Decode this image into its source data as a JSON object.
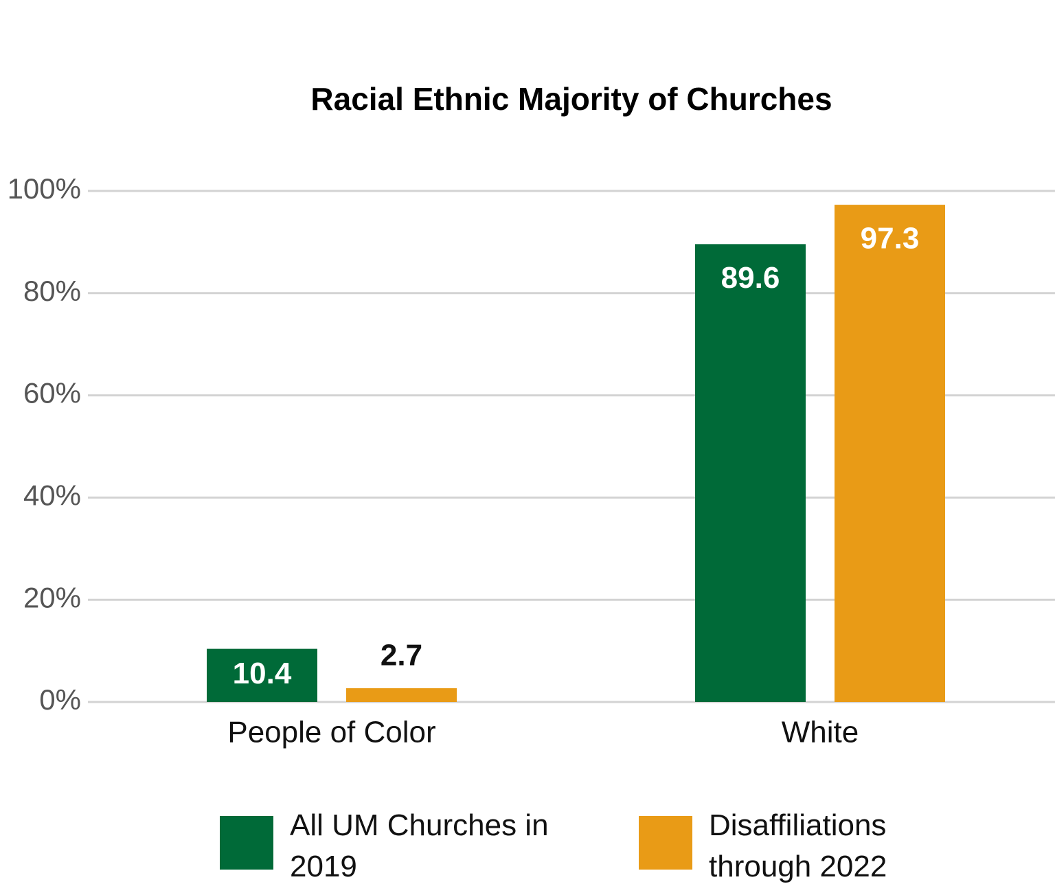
{
  "chart_data": {
    "type": "bar",
    "title": "Racial Ethnic Majority of Churches",
    "categories": [
      "People of Color",
      "White"
    ],
    "series": [
      {
        "name": "All UM Churches in 2019",
        "color": "#006a38",
        "values": [
          10.4,
          89.6
        ]
      },
      {
        "name": "Disaffiliations through 2022",
        "color": "#e99b16",
        "values": [
          2.7,
          97.3
        ]
      }
    ],
    "ylim": [
      0,
      100
    ],
    "yticks": [
      {
        "value": 0,
        "label": "0%"
      },
      {
        "value": 20,
        "label": "20%"
      },
      {
        "value": 40,
        "label": "40%"
      },
      {
        "value": 60,
        "label": "60%"
      },
      {
        "value": 80,
        "label": "80%"
      },
      {
        "value": 100,
        "label": "100%"
      }
    ],
    "grid": true,
    "legend": "bottom"
  }
}
